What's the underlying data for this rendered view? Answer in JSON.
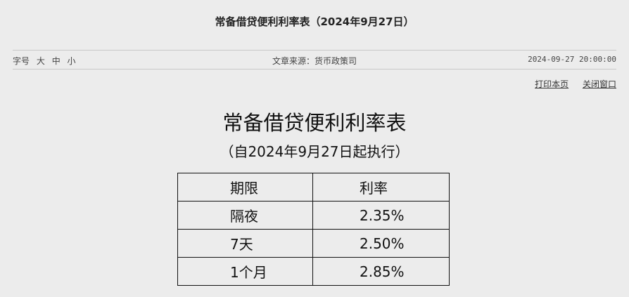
{
  "header": {
    "title": "常备借贷便利利率表（2024年9月27日）"
  },
  "meta": {
    "font_size_label": "字号",
    "sizes": [
      "大",
      "中",
      "小"
    ],
    "source": "文章来源：货币政策司",
    "datetime": "2024-09-27 20:00:00"
  },
  "actions": {
    "print": "打印本页",
    "close": "关闭窗口"
  },
  "article": {
    "title": "常备借贷便利利率表",
    "subtitle": "（自2024年9月27日起执行）",
    "table": {
      "headers": [
        "期限",
        "利率"
      ],
      "rows": [
        [
          "隔夜",
          "2.35%"
        ],
        [
          "7天",
          "2.50%"
        ],
        [
          "1个月",
          "2.85%"
        ]
      ]
    }
  }
}
